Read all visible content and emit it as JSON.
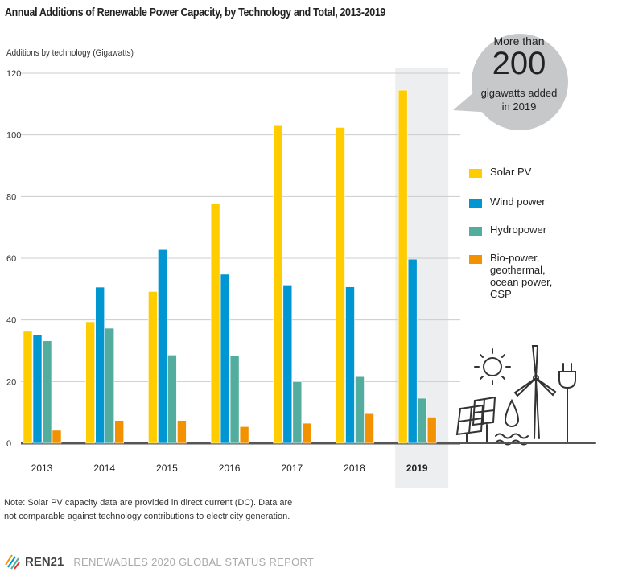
{
  "chart_data": {
    "type": "bar",
    "title": "Annual Additions of Renewable Power Capacity, by Technology and Total, 2013-2019",
    "ylabel": "Additions by technology (Gigawatts)",
    "xlabel": "",
    "ylim": [
      0,
      120
    ],
    "yticks": [
      0,
      20,
      40,
      60,
      80,
      100,
      120
    ],
    "grid": true,
    "categories": [
      "2013",
      "2014",
      "2015",
      "2016",
      "2017",
      "2018",
      "2019"
    ],
    "highlight_category": "2019",
    "legend_position": "right",
    "series": [
      {
        "name": "Solar PV",
        "color": "#ffcc00",
        "values": [
          36.3,
          39.4,
          49.2,
          77.8,
          103,
          102.4,
          114.5
        ]
      },
      {
        "name": "Wind power",
        "color": "#0096d2",
        "values": [
          35.3,
          50.6,
          62.8,
          54.8,
          51.3,
          50.7,
          59.7
        ]
      },
      {
        "name": "Hydropower",
        "color": "#52ad9f",
        "values": [
          33.2,
          37.3,
          28.6,
          28.3,
          20,
          21.6,
          14.6
        ]
      },
      {
        "name": "Bio-power,\ngeothermal,\nocean power,\nCSP",
        "color": "#f39200",
        "values": [
          4.2,
          7.4,
          7.4,
          5.4,
          6.5,
          9.6,
          8.5
        ]
      }
    ],
    "annotation": {
      "line1": "More than",
      "line2": "200",
      "line3": "gigawatts added",
      "line4": "in 2019"
    }
  },
  "note": "Note: Solar PV capacity data are provided in direct current (DC). Data are not comparable against technology contributions to electricity generation.",
  "footer": {
    "logo_text": "REN21",
    "report": "RENEWABLES 2020 GLOBAL STATUS REPORT"
  },
  "icons": [
    "sun-icon",
    "wind-turbine-icon",
    "plug-icon",
    "solar-panel-icon",
    "water-drop-icon",
    "waves-icon"
  ]
}
